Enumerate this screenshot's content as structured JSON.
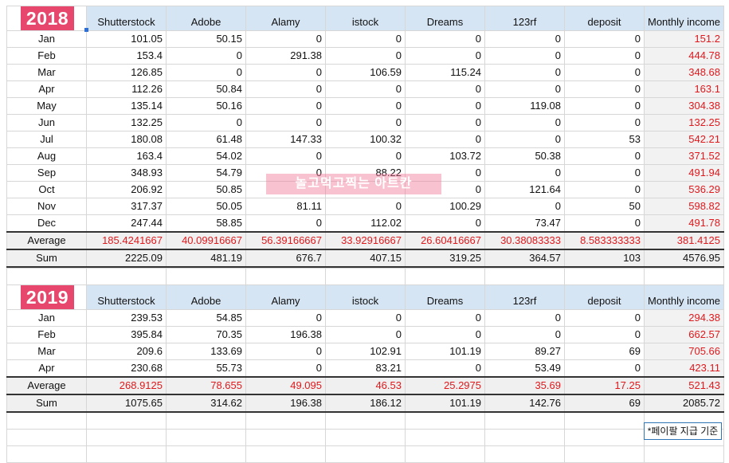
{
  "columns": [
    "Shutterstock",
    "Adobe",
    "Alamy",
    "istock",
    "Dreams",
    "123rf",
    "deposit",
    "Monthly income"
  ],
  "table2018": {
    "year": "2018",
    "rows": [
      {
        "month": "Jan",
        "values": [
          "101.05",
          "50.15",
          "0",
          "0",
          "0",
          "0",
          "0",
          "151.2"
        ]
      },
      {
        "month": "Feb",
        "values": [
          "153.4",
          "0",
          "291.38",
          "0",
          "0",
          "0",
          "0",
          "444.78"
        ]
      },
      {
        "month": "Mar",
        "values": [
          "126.85",
          "0",
          "0",
          "106.59",
          "115.24",
          "0",
          "0",
          "348.68"
        ]
      },
      {
        "month": "Apr",
        "values": [
          "112.26",
          "50.84",
          "0",
          "0",
          "0",
          "0",
          "0",
          "163.1"
        ]
      },
      {
        "month": "May",
        "values": [
          "135.14",
          "50.16",
          "0",
          "0",
          "0",
          "119.08",
          "0",
          "304.38"
        ]
      },
      {
        "month": "Jun",
        "values": [
          "132.25",
          "0",
          "0",
          "0",
          "0",
          "0",
          "0",
          "132.25"
        ]
      },
      {
        "month": "Jul",
        "values": [
          "180.08",
          "61.48",
          "147.33",
          "100.32",
          "0",
          "0",
          "53",
          "542.21"
        ]
      },
      {
        "month": "Aug",
        "values": [
          "163.4",
          "54.02",
          "0",
          "0",
          "103.72",
          "50.38",
          "0",
          "371.52"
        ]
      },
      {
        "month": "Sep",
        "values": [
          "348.93",
          "54.79",
          "0",
          "88.22",
          "0",
          "0",
          "0",
          "491.94"
        ]
      },
      {
        "month": "Oct",
        "values": [
          "206.92",
          "50.85",
          "",
          "",
          "0",
          "121.64",
          "0",
          "536.29"
        ]
      },
      {
        "month": "Nov",
        "values": [
          "317.37",
          "50.05",
          "81.11",
          "0",
          "100.29",
          "0",
          "50",
          "598.82"
        ]
      },
      {
        "month": "Dec",
        "values": [
          "247.44",
          "58.85",
          "0",
          "112.02",
          "0",
          "73.47",
          "0",
          "491.78"
        ]
      }
    ],
    "average": {
      "label": "Average",
      "values": [
        "185.4241667",
        "40.09916667",
        "56.39166667",
        "33.92916667",
        "26.60416667",
        "30.38083333",
        "8.583333333",
        "381.4125"
      ]
    },
    "sum": {
      "label": "Sum",
      "values": [
        "2225.09",
        "481.19",
        "676.7",
        "407.15",
        "319.25",
        "364.57",
        "103",
        "4576.95"
      ]
    }
  },
  "table2019": {
    "year": "2019",
    "rows": [
      {
        "month": "Jan",
        "values": [
          "239.53",
          "54.85",
          "0",
          "0",
          "0",
          "0",
          "0",
          "294.38"
        ]
      },
      {
        "month": "Feb",
        "values": [
          "395.84",
          "70.35",
          "196.38",
          "0",
          "0",
          "0",
          "0",
          "662.57"
        ]
      },
      {
        "month": "Mar",
        "values": [
          "209.6",
          "133.69",
          "0",
          "102.91",
          "101.19",
          "89.27",
          "69",
          "705.66"
        ]
      },
      {
        "month": "Apr",
        "values": [
          "230.68",
          "55.73",
          "0",
          "83.21",
          "0",
          "53.49",
          "0",
          "423.11"
        ]
      }
    ],
    "average": {
      "label": "Average",
      "values": [
        "268.9125",
        "78.655",
        "49.095",
        "46.53",
        "25.2975",
        "35.69",
        "17.25",
        "521.43"
      ]
    },
    "sum": {
      "label": "Sum",
      "values": [
        "1075.65",
        "314.62",
        "196.38",
        "186.12",
        "101.19",
        "142.76",
        "69",
        "2085.72"
      ]
    }
  },
  "watermark": "놀고먹고찍는 아트칸",
  "note": "*페이팔 지급 기준",
  "colors": {
    "header_bg": "#d6e5f4",
    "year_badge": "#e8476d",
    "highlight_red": "#e0191d",
    "income_bg": "#f2f2f2"
  }
}
